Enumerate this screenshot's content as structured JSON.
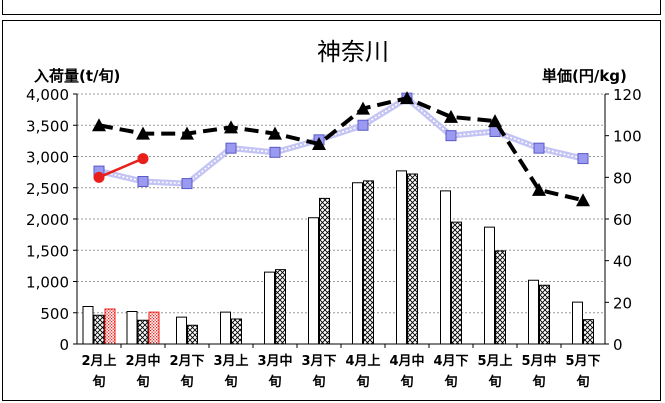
{
  "chart_data": {
    "type": "bar",
    "title": "神奈川",
    "ylabel_left": "入荷量(t/旬)",
    "ylabel_right": "単価(円/kg)",
    "categories": [
      [
        "2月上",
        "旬"
      ],
      [
        "2月中",
        "旬"
      ],
      [
        "2月下",
        "旬"
      ],
      [
        "3月上",
        "旬"
      ],
      [
        "3月中",
        "旬"
      ],
      [
        "3月下",
        "旬"
      ],
      [
        "4月上",
        "旬"
      ],
      [
        "4月中",
        "旬"
      ],
      [
        "4月下",
        "旬"
      ],
      [
        "5月上",
        "旬"
      ],
      [
        "5月中",
        "旬"
      ],
      [
        "5月下",
        "旬"
      ]
    ],
    "y_left": {
      "min": 0,
      "max": 4000,
      "ticks": [
        "0",
        "500",
        "1,000",
        "1,500",
        "2,000",
        "2,500",
        "3,000",
        "3,500",
        "4,000"
      ]
    },
    "y_right": {
      "min": 0,
      "max": 120,
      "ticks": [
        "0",
        "20",
        "40",
        "60",
        "80",
        "100",
        "120"
      ]
    },
    "grid": true,
    "bar_series": [
      {
        "style": "white",
        "values": [
          600,
          520,
          430,
          510,
          1150,
          2020,
          2580,
          2770,
          2450,
          1870,
          1020,
          670
        ]
      },
      {
        "style": "crosshatch",
        "values": [
          460,
          380,
          300,
          400,
          1190,
          2330,
          2610,
          2720,
          1950,
          1490,
          940,
          390
        ]
      },
      {
        "style": "red-dotted",
        "values": [
          560,
          510,
          null,
          null,
          null,
          null,
          null,
          null,
          null,
          null,
          null,
          null
        ]
      }
    ],
    "line_series": [
      {
        "style": "black-dashed-triangle",
        "values": [
          105,
          101,
          101,
          104,
          101,
          96,
          113,
          118,
          109,
          107,
          74,
          69
        ]
      },
      {
        "style": "blue-band-square",
        "values": [
          83,
          78,
          77,
          94,
          92,
          98,
          105,
          118,
          100,
          102,
          94,
          89
        ]
      },
      {
        "style": "red-circle",
        "values": [
          80,
          89,
          null,
          null,
          null,
          null,
          null,
          null,
          null,
          null,
          null,
          null
        ]
      }
    ]
  },
  "colors": {
    "red_series": "#e8201c",
    "blue_marker": "#9a9af0",
    "blue_band": "#c4c4f4",
    "grid": "#9a9a9a"
  }
}
